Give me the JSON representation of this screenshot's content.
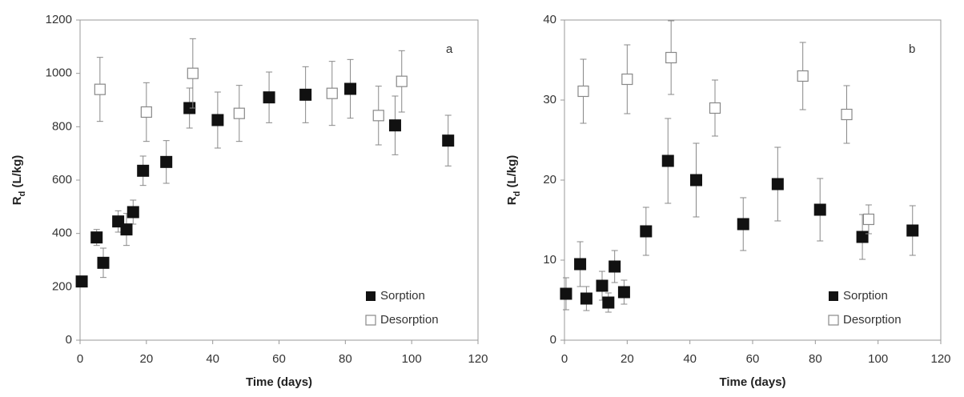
{
  "chart_data": [
    {
      "type": "scatter",
      "panel_label": "a",
      "xlabel": "Time (days)",
      "ylabel": [
        "R",
        "d",
        " (L/kg)"
      ],
      "xlim": [
        0,
        120
      ],
      "xticks": [
        0,
        20,
        40,
        60,
        80,
        100,
        120
      ],
      "ylim": [
        0,
        1200
      ],
      "yticks": [
        0,
        200,
        400,
        600,
        800,
        1000,
        1200
      ],
      "legend": "lower right",
      "series": [
        {
          "name": "Sorption",
          "color": "#111111",
          "filled": true,
          "x": [
            0.5,
            5,
            7,
            11.5,
            14,
            16,
            19,
            26,
            33,
            41.5,
            57,
            68,
            81.5,
            95,
            111
          ],
          "values": [
            220,
            385,
            290,
            445,
            415,
            480,
            635,
            668,
            870,
            825,
            910,
            920,
            942,
            805,
            748
          ],
          "errors": [
            20,
            30,
            55,
            40,
            60,
            45,
            55,
            80,
            75,
            105,
            95,
            105,
            110,
            110,
            95
          ]
        },
        {
          "name": "Desorption",
          "color": "#888888",
          "filled": false,
          "x": [
            6,
            20,
            34,
            48,
            76,
            90,
            97
          ],
          "values": [
            940,
            855,
            1000,
            850,
            925,
            842,
            970
          ],
          "errors": [
            120,
            110,
            130,
            105,
            120,
            110,
            115
          ]
        }
      ]
    },
    {
      "type": "scatter",
      "panel_label": "b",
      "xlabel": "Time (days)",
      "ylabel": [
        "R",
        "d",
        " (L/kg)"
      ],
      "xlim": [
        0,
        120
      ],
      "xticks": [
        0,
        20,
        40,
        60,
        80,
        100,
        120
      ],
      "ylim": [
        0,
        40
      ],
      "yticks": [
        0,
        10,
        20,
        30,
        40
      ],
      "legend": "lower right",
      "series": [
        {
          "name": "Sorption",
          "color": "#111111",
          "filled": true,
          "x": [
            0.5,
            5,
            7,
            12,
            14,
            16,
            19,
            26,
            33,
            42,
            57,
            68,
            81.5,
            95,
            111
          ],
          "values": [
            5.8,
            9.5,
            5.2,
            6.8,
            4.7,
            9.2,
            6.0,
            13.6,
            22.4,
            20.0,
            14.5,
            19.5,
            16.3,
            12.9,
            13.7
          ],
          "errors": [
            2,
            2.8,
            1.5,
            1.8,
            1.2,
            2,
            1.5,
            3,
            5.3,
            4.6,
            3.3,
            4.6,
            3.9,
            2.8,
            3.1
          ]
        },
        {
          "name": "Desorption",
          "color": "#888888",
          "filled": false,
          "x": [
            6,
            20,
            34,
            48,
            76,
            90,
            97
          ],
          "values": [
            31.1,
            32.6,
            35.3,
            29,
            33,
            28.2,
            15.1
          ],
          "errors": [
            4,
            4.3,
            4.6,
            3.5,
            4.2,
            3.6,
            1.8
          ]
        }
      ]
    }
  ]
}
